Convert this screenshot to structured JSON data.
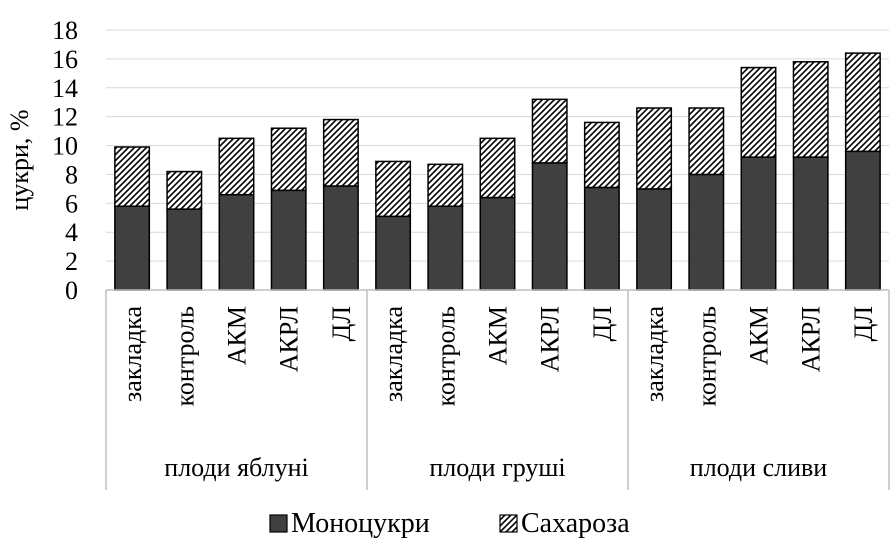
{
  "chart_data": {
    "type": "bar",
    "stacked": true,
    "ylabel": "цукри, %",
    "ylim": [
      0,
      18
    ],
    "yticks": [
      0,
      2,
      4,
      6,
      8,
      10,
      12,
      14,
      16,
      18
    ],
    "grid": true,
    "legend_position": "bottom",
    "groups": [
      {
        "label": "плоди яблуні",
        "categories": [
          "закладка",
          "контроль",
          "АКМ",
          "АКРЛ",
          "ДЛ"
        ]
      },
      {
        "label": "плоди груші",
        "categories": [
          "закладка",
          "контроль",
          "АКМ",
          "АКРЛ",
          "ДЛ"
        ]
      },
      {
        "label": "плоди сливи",
        "categories": [
          "закладка",
          "контроль",
          "АКМ",
          "АКРЛ",
          "ДЛ"
        ]
      }
    ],
    "series": [
      {
        "name": "Моноцукри",
        "fill": "dark",
        "color": "#404040",
        "values": [
          5.8,
          5.6,
          6.6,
          6.9,
          7.2,
          5.1,
          5.8,
          6.4,
          8.8,
          7.1,
          7.0,
          8.0,
          9.2,
          9.2,
          9.6
        ]
      },
      {
        "name": "Сахароза",
        "fill": "hatch",
        "color": "#000000",
        "values": [
          4.1,
          2.6,
          3.9,
          4.3,
          4.6,
          3.8,
          2.9,
          4.1,
          4.4,
          4.5,
          5.6,
          4.6,
          6.2,
          6.6,
          6.8
        ]
      }
    ]
  }
}
